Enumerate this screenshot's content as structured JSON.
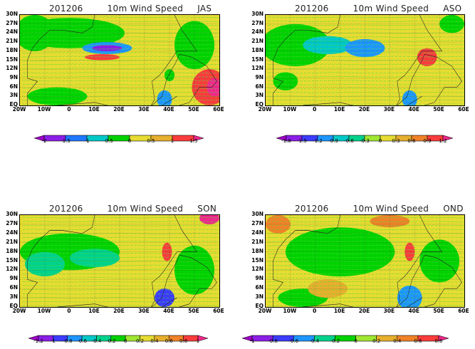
{
  "panels": [
    {
      "id": "jas",
      "date": "201206",
      "variable": "10m Wind Speed",
      "season": "JAS",
      "colorbar": {
        "labels": [
          "-2",
          "-1.5",
          "-1",
          "-0.5",
          "0",
          "0.5",
          "1",
          "1.5"
        ],
        "colors": [
          "#a000c8",
          "#8c1ee6",
          "#1e78ff",
          "#00c8c8",
          "#00d200",
          "#e6dc32",
          "#e6af2d",
          "#fa3c3c",
          "#f0288c"
        ]
      }
    },
    {
      "id": "aso",
      "date": "201206",
      "variable": "10m Wind Speed",
      "season": "ASO",
      "colorbar": {
        "labels": [
          "-1.8",
          "-1.5",
          "-1.2",
          "-0.9",
          "-0.6",
          "-0.3",
          "0",
          "0.3",
          "0.6",
          "0.9",
          "1.2"
        ],
        "colors": [
          "#a000c8",
          "#8c1ee6",
          "#3c3cff",
          "#1e96ff",
          "#00c8c8",
          "#00d28c",
          "#a0e632",
          "#e6dc32",
          "#e6af2d",
          "#f08228",
          "#fa3c3c",
          "#f0288c"
        ]
      }
    },
    {
      "id": "son",
      "date": "201206",
      "variable": "10m Wind Speed",
      "season": "SON",
      "colorbar": {
        "labels": [
          "-1.2",
          "-1",
          "-0.8",
          "-0.6",
          "-0.4",
          "-0.2",
          "0",
          "0.2",
          "0.4",
          "0.6",
          "0.8",
          "1"
        ],
        "colors": [
          "#a000c8",
          "#8c1ee6",
          "#3c3cff",
          "#1e96ff",
          "#00c8c8",
          "#00d28c",
          "#00d200",
          "#a0e632",
          "#e6dc32",
          "#e6af2d",
          "#f08228",
          "#fa3c3c",
          "#f0288c"
        ]
      }
    },
    {
      "id": "ond",
      "date": "201206",
      "variable": "10m Wind Speed",
      "season": "OND",
      "colorbar": {
        "labels": [
          "-1",
          "-0.8",
          "-0.6",
          "-0.4",
          "-0.2",
          "0",
          "0.2",
          "0.4",
          "0.6",
          "0.8"
        ],
        "colors": [
          "#a000c8",
          "#8c1ee6",
          "#3c3cff",
          "#1e96ff",
          "#00d28c",
          "#00d200",
          "#a0e632",
          "#e6af2d",
          "#f08228",
          "#fa3c3c",
          "#f0288c"
        ]
      }
    }
  ],
  "axes": {
    "lat_ticks": [
      "30N",
      "27N",
      "24N",
      "21N",
      "18N",
      "15N",
      "12N",
      "9N",
      "6N",
      "3N",
      "EQ"
    ],
    "lon_ticks": [
      "20W",
      "10W",
      "0",
      "10E",
      "20E",
      "30E",
      "40E",
      "50E",
      "60E"
    ]
  },
  "colors": {
    "vectors": "#50dc3c",
    "coast": "#222222",
    "grid": "#333333"
  }
}
